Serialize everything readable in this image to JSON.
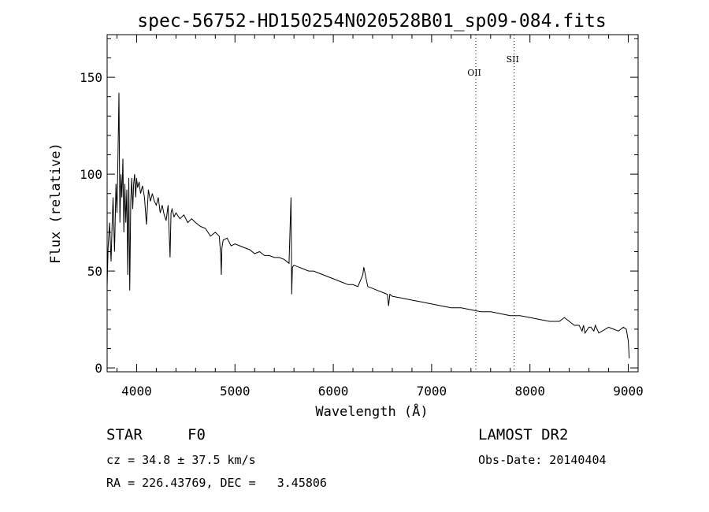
{
  "chart_data": {
    "type": "line",
    "title": "spec-56752-HD150254N020528B01_sp09-084.fits",
    "xlabel": "Wavelength (Å)",
    "ylabel": "Flux (relative)",
    "xlim": [
      3700,
      9100
    ],
    "ylim": [
      -2,
      172
    ],
    "xticks": [
      4000,
      5000,
      6000,
      7000,
      8000,
      9000
    ],
    "yticks": [
      0,
      50,
      100,
      150
    ],
    "grid": false,
    "line_color": "#000000",
    "annotations": [
      {
        "label": "OII",
        "x": 7450
      },
      {
        "label": "SII",
        "x": 7840
      }
    ],
    "series": [
      {
        "x": [
          3700,
          3710,
          3725,
          3740,
          3750,
          3760,
          3775,
          3790,
          3800,
          3810,
          3820,
          3830,
          3840,
          3850,
          3860,
          3870,
          3880,
          3890,
          3900,
          3910,
          3920,
          3930,
          3940,
          3950,
          3960,
          3970,
          3980,
          3990,
          4000,
          4010,
          4025,
          4040,
          4060,
          4080,
          4100,
          4120,
          4140,
          4160,
          4180,
          4200,
          4220,
          4240,
          4260,
          4280,
          4300,
          4320,
          4340,
          4350,
          4360,
          4380,
          4400,
          4440,
          4480,
          4520,
          4560,
          4600,
          4650,
          4700,
          4750,
          4800,
          4840,
          4855,
          4861,
          4867,
          4880,
          4920,
          4960,
          5000,
          5050,
          5100,
          5150,
          5200,
          5250,
          5300,
          5350,
          5400,
          5450,
          5500,
          5550,
          5570,
          5577,
          5584,
          5600,
          5650,
          5700,
          5750,
          5800,
          5850,
          5900,
          5950,
          6000,
          6050,
          6100,
          6150,
          6200,
          6250,
          6300,
          6310,
          6350,
          6400,
          6450,
          6500,
          6550,
          6563,
          6575,
          6600,
          6700,
          6800,
          6900,
          7000,
          7100,
          7200,
          7300,
          7400,
          7500,
          7600,
          7700,
          7800,
          7900,
          8000,
          8100,
          8200,
          8300,
          8350,
          8400,
          8450,
          8500,
          8530,
          8545,
          8560,
          8600,
          8620,
          8650,
          8665,
          8700,
          8800,
          8850,
          8900,
          8950,
          8980,
          9000,
          9010
        ],
        "y": [
          42,
          62,
          75,
          55,
          72,
          88,
          60,
          95,
          80,
          108,
          142,
          75,
          100,
          88,
          108,
          70,
          95,
          75,
          92,
          48,
          98,
          40,
          86,
          98,
          82,
          95,
          100,
          88,
          98,
          93,
          96,
          90,
          94,
          88,
          74,
          92,
          86,
          90,
          86,
          84,
          88,
          80,
          84,
          79,
          76,
          84,
          57,
          80,
          82,
          78,
          80,
          77,
          79,
          75,
          77,
          75,
          73,
          72,
          68,
          70,
          68,
          58,
          48,
          62,
          66,
          67,
          63,
          64,
          63,
          62,
          61,
          59,
          60,
          58,
          58,
          57,
          57,
          56,
          54,
          88,
          38,
          52,
          53,
          52,
          51,
          50,
          50,
          49,
          48,
          47,
          46,
          45,
          44,
          43,
          43,
          42,
          48,
          52,
          42,
          41,
          40,
          39,
          38,
          32,
          38,
          37,
          36,
          35,
          34,
          33,
          32,
          31,
          31,
          30,
          29,
          29,
          28,
          27,
          27,
          26,
          25,
          24,
          24,
          26,
          24,
          22,
          22,
          19,
          22,
          18,
          21,
          21,
          19,
          22,
          18,
          21,
          20,
          19,
          21,
          20,
          14,
          5
        ]
      }
    ]
  },
  "info": {
    "object_type": "STAR",
    "subclass": "F0",
    "survey": "LAMOST DR2",
    "cz": "cz = 34.8 ± 37.5 km/s",
    "obs_date": "Obs-Date: 20140404",
    "coords": "RA = 226.43769, DEC =   3.45806"
  }
}
